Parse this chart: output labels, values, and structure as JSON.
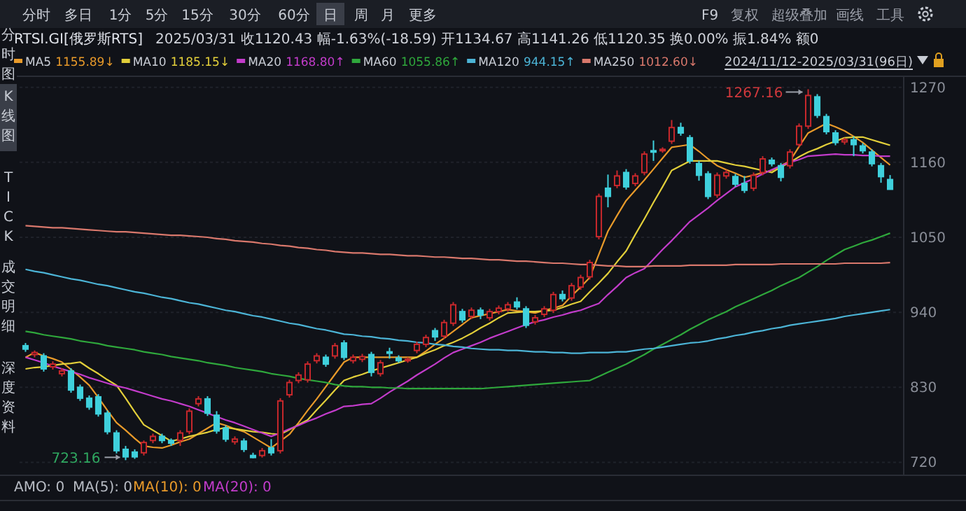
{
  "chart_data": {
    "type": "candlestick",
    "title": "RTSI.GI[俄罗斯RTS]",
    "subtitle": "2025/03/31  收1120.43  幅-1.63%(-18.59)  开1134.67  高1141.26  低1120.35  换0.00%  振1.84%  额0",
    "categories": [
      null,
      null,
      null,
      null,
      null,
      null,
      null,
      null,
      null,
      null,
      null,
      null,
      null,
      null,
      null,
      null,
      null,
      null,
      null,
      null,
      null,
      null,
      null,
      null,
      null,
      null,
      null,
      null,
      null,
      null,
      null,
      null,
      null,
      null,
      null,
      null,
      null,
      null,
      null,
      null,
      null,
      null,
      null,
      null,
      null,
      null,
      null,
      null,
      null,
      null,
      null,
      null,
      null,
      null,
      null,
      null,
      null,
      null,
      null,
      null,
      null,
      null,
      null,
      null,
      null,
      null,
      null,
      null,
      null,
      null,
      null,
      null,
      null,
      null,
      null,
      null,
      null,
      null,
      null,
      null,
      null,
      null,
      null,
      null,
      null,
      null,
      null,
      null,
      null,
      null,
      null,
      null,
      null,
      null,
      null,
      null
    ],
    "ohlc": [
      [
        891,
        895,
        882,
        886
      ],
      [
        878,
        884,
        874,
        881
      ],
      [
        876,
        880,
        853,
        857
      ],
      [
        860,
        868,
        856,
        864
      ],
      [
        850,
        858,
        846,
        854
      ],
      [
        854,
        858,
        822,
        826
      ],
      [
        830,
        834,
        810,
        814
      ],
      [
        814,
        818,
        797,
        801
      ],
      [
        816,
        820,
        787,
        791
      ],
      [
        792,
        796,
        761,
        765
      ],
      [
        763,
        767,
        733,
        737
      ],
      [
        739,
        744,
        723.16,
        728
      ],
      [
        735,
        739,
        725,
        728
      ],
      [
        734,
        752,
        730,
        749
      ],
      [
        752,
        762,
        748,
        758
      ],
      [
        758,
        762,
        748,
        752
      ],
      [
        752,
        755,
        744,
        748
      ],
      [
        752,
        767,
        744,
        763
      ],
      [
        765,
        799,
        761,
        795
      ],
      [
        806,
        817,
        802,
        813
      ],
      [
        813,
        817,
        788,
        792
      ],
      [
        789,
        795,
        762,
        766
      ],
      [
        770,
        774,
        750,
        754
      ],
      [
        750,
        758,
        746,
        754
      ],
      [
        751,
        755,
        735,
        739
      ],
      [
        730,
        734,
        726,
        727
      ],
      [
        730,
        741,
        727,
        737
      ],
      [
        741,
        754,
        730,
        734
      ],
      [
        737,
        814,
        733,
        810
      ],
      [
        819,
        841,
        815,
        837
      ],
      [
        840,
        852,
        836,
        848
      ],
      [
        841,
        868,
        837,
        864
      ],
      [
        869,
        880,
        865,
        876
      ],
      [
        874,
        878,
        860,
        864
      ],
      [
        876,
        895,
        872,
        891
      ],
      [
        895,
        899,
        870,
        874
      ],
      [
        869,
        878,
        865,
        874
      ],
      [
        871,
        879,
        867,
        875
      ],
      [
        878,
        882,
        846,
        852
      ],
      [
        850,
        870,
        846,
        866
      ],
      [
        882,
        888,
        872,
        881
      ],
      [
        873,
        877,
        866,
        869
      ],
      [
        870,
        874,
        866,
        871
      ],
      [
        884,
        897,
        880,
        893
      ],
      [
        893,
        907,
        889,
        903
      ],
      [
        913,
        917,
        898,
        904
      ],
      [
        905,
        929,
        901,
        925
      ],
      [
        924,
        955,
        920,
        951
      ],
      [
        941,
        945,
        925,
        929
      ],
      [
        934,
        947,
        930,
        943
      ],
      [
        943,
        947,
        930,
        936
      ],
      [
        932,
        945,
        928,
        941
      ],
      [
        941,
        950,
        937,
        946
      ],
      [
        945,
        955,
        941,
        951
      ],
      [
        955,
        962,
        944,
        948
      ],
      [
        945,
        949,
        917,
        921
      ],
      [
        926,
        936,
        922,
        932
      ],
      [
        937,
        949,
        933,
        945
      ],
      [
        943,
        970,
        939,
        966
      ],
      [
        966,
        972,
        956,
        960
      ],
      [
        961,
        983,
        957,
        979
      ],
      [
        977,
        995,
        973,
        991
      ],
      [
        992,
        1017,
        988,
        1013
      ],
      [
        1051,
        1114,
        1047,
        1110
      ],
      [
        1122,
        1142,
        1094,
        1110
      ],
      [
        1126,
        1148,
        1122,
        1140
      ],
      [
        1145,
        1150,
        1120,
        1124
      ],
      [
        1129,
        1144,
        1125,
        1140
      ],
      [
        1145,
        1176,
        1141,
        1172
      ],
      [
        1177,
        1192,
        1162,
        1175
      ],
      [
        1178,
        1182,
        1174,
        1179
      ],
      [
        1191,
        1222,
        1187,
        1211
      ],
      [
        1211,
        1218,
        1199,
        1203
      ],
      [
        1196,
        1200,
        1158,
        1162
      ],
      [
        1158,
        1162,
        1133,
        1141
      ],
      [
        1143,
        1147,
        1106,
        1110
      ],
      [
        1112,
        1145,
        1108,
        1141
      ],
      [
        1140,
        1149,
        1136,
        1145
      ],
      [
        1139,
        1143,
        1124,
        1128
      ],
      [
        1129,
        1140,
        1115,
        1119
      ],
      [
        1122,
        1145,
        1118,
        1141
      ],
      [
        1145,
        1169,
        1141,
        1165
      ],
      [
        1163,
        1167,
        1154,
        1158
      ],
      [
        1155,
        1159,
        1132,
        1138
      ],
      [
        1155,
        1179,
        1151,
        1175
      ],
      [
        1186,
        1217,
        1182,
        1213
      ],
      [
        1213,
        1267.16,
        1209,
        1258
      ],
      [
        1256,
        1260,
        1225,
        1229
      ],
      [
        1227,
        1231,
        1201,
        1205
      ],
      [
        1203,
        1207,
        1185,
        1189
      ],
      [
        1190,
        1196,
        1186,
        1193
      ],
      [
        1193,
        1198,
        1169,
        1186
      ],
      [
        1184,
        1188,
        1173,
        1177
      ],
      [
        1175,
        1179,
        1154,
        1158
      ],
      [
        1155,
        1159,
        1130,
        1139
      ],
      [
        1134.67,
        1141.26,
        1120.35,
        1120.43
      ]
    ],
    "colors": [
      "#3fd0dc",
      "#c8282c",
      "#3fd0dc",
      "#c8282c",
      "#c8282c",
      "#3fd0dc",
      "#3fd0dc",
      "#3fd0dc",
      "#3fd0dc",
      "#3fd0dc",
      "#3fd0dc",
      "#3fd0dc",
      "#3fd0dc",
      "#c8282c",
      "#c8282c",
      "#3fd0dc",
      "#3fd0dc",
      "#c8282c",
      "#c8282c",
      "#c8282c",
      "#3fd0dc",
      "#3fd0dc",
      "#3fd0dc",
      "#c8282c",
      "#3fd0dc",
      "#3fd0dc",
      "#c8282c",
      "#3fd0dc",
      "#c8282c",
      "#c8282c",
      "#c8282c",
      "#c8282c",
      "#c8282c",
      "#3fd0dc",
      "#c8282c",
      "#3fd0dc",
      "#c8282c",
      "#c8282c",
      "#3fd0dc",
      "#c8282c",
      "#3fd0dc",
      "#3fd0dc",
      "#c8282c",
      "#c8282c",
      "#c8282c",
      "#3fd0dc",
      "#c8282c",
      "#c8282c",
      "#3fd0dc",
      "#c8282c",
      "#3fd0dc",
      "#c8282c",
      "#c8282c",
      "#c8282c",
      "#3fd0dc",
      "#3fd0dc",
      "#c8282c",
      "#c8282c",
      "#c8282c",
      "#3fd0dc",
      "#c8282c",
      "#c8282c",
      "#c8282c",
      "#c8282c",
      "#3fd0dc",
      "#c8282c",
      "#3fd0dc",
      "#c8282c",
      "#c8282c",
      "#3fd0dc",
      "#c8282c",
      "#c8282c",
      "#3fd0dc",
      "#3fd0dc",
      "#3fd0dc",
      "#3fd0dc",
      "#c8282c",
      "#c8282c",
      "#3fd0dc",
      "#3fd0dc",
      "#c8282c",
      "#c8282c",
      "#3fd0dc",
      "#3fd0dc",
      "#c8282c",
      "#c8282c",
      "#c8282c",
      "#3fd0dc",
      "#3fd0dc",
      "#3fd0dc",
      "#c8282c",
      "#3fd0dc",
      "#3fd0dc",
      "#3fd0dc",
      "#3fd0dc",
      "#3fd0dc"
    ],
    "series": [
      {
        "type": "line",
        "name": "MA5",
        "color": "#e89a2a",
        "values": [
          874,
          881,
          876,
          872,
          867,
          856,
          845,
          833,
          815,
          796,
          778,
          767,
          755,
          744,
          742,
          741,
          745,
          750,
          754,
          762,
          770,
          778,
          774,
          769,
          765,
          757,
          749,
          741,
          751,
          761,
          778,
          796,
          813,
          831,
          849,
          867,
          874,
          874,
          874,
          874,
          874,
          874,
          874,
          874,
          883,
          893,
          902,
          912,
          922,
          932,
          935,
          938,
          941,
          944,
          942,
          941,
          939,
          943,
          946,
          950,
          964,
          977,
          991,
          1025,
          1059,
          1082,
          1104,
          1119,
          1134,
          1150,
          1166,
          1182,
          1184,
          1186,
          1176,
          1165,
          1155,
          1149,
          1144,
          1138,
          1141,
          1145,
          1148,
          1155,
          1162,
          1183,
          1203,
          1210,
          1217,
          1212,
          1206,
          1198,
          1189,
          1178,
          1167,
          1156
        ]
      },
      {
        "type": "line",
        "name": "MA10",
        "color": "#e2cf3a",
        "values": [
          857,
          859,
          860,
          862,
          864,
          865,
          867,
          858,
          850,
          841,
          833,
          814,
          794,
          775,
          767,
          759,
          751,
          754,
          758,
          761,
          764,
          768,
          771,
          769,
          767,
          765,
          764,
          762,
          761,
          768,
          775,
          782,
          797,
          811,
          826,
          840,
          845,
          849,
          854,
          858,
          862,
          866,
          870,
          874,
          880,
          885,
          891,
          896,
          902,
          909,
          917,
          924,
          932,
          939,
          940,
          941,
          941,
          942,
          943,
          947,
          952,
          956,
          970,
          983,
          997,
          1014,
          1030,
          1054,
          1077,
          1101,
          1124,
          1148,
          1155,
          1162,
          1162,
          1162,
          1162,
          1159,
          1156,
          1154,
          1151,
          1148,
          1145,
          1153,
          1160,
          1168,
          1175,
          1180,
          1186,
          1191,
          1196,
          1197,
          1197,
          1193,
          1189,
          1185
        ]
      },
      {
        "type": "line",
        "name": "MA20",
        "color": "#c33ccb",
        "values": [
          874,
          870,
          866,
          861,
          857,
          853,
          849,
          844,
          840,
          836,
          832,
          829,
          825,
          821,
          817,
          813,
          810,
          806,
          802,
          797,
          792,
          787,
          782,
          778,
          773,
          768,
          763,
          758,
          763,
          769,
          774,
          780,
          785,
          791,
          796,
          802,
          803,
          805,
          806,
          814,
          823,
          831,
          839,
          848,
          856,
          864,
          873,
          881,
          886,
          891,
          896,
          902,
          907,
          912,
          917,
          922,
          926,
          929,
          933,
          936,
          940,
          943,
          948,
          953,
          966,
          978,
          991,
          998,
          1004,
          1018,
          1032,
          1045,
          1059,
          1073,
          1083,
          1093,
          1104,
          1114,
          1124,
          1130,
          1136,
          1143,
          1149,
          1155,
          1160,
          1164,
          1169,
          1170,
          1171,
          1172,
          1171,
          1171,
          1170,
          1170,
          1169,
          1169
        ]
      },
      {
        "type": "line",
        "name": "MA60",
        "color": "#2fa83c",
        "values": [
          912,
          910,
          907,
          905,
          903,
          901,
          898,
          896,
          894,
          891,
          889,
          887,
          885,
          882,
          880,
          878,
          875,
          873,
          871,
          869,
          866,
          864,
          862,
          859,
          857,
          855,
          853,
          850,
          848,
          846,
          843,
          841,
          839,
          837,
          834,
          832,
          831,
          831,
          830,
          830,
          829,
          829,
          828,
          828,
          828,
          828,
          828,
          828,
          828,
          828,
          828,
          829,
          830,
          831,
          832,
          833,
          834,
          835,
          836,
          837,
          838,
          839,
          840,
          846,
          852,
          858,
          864,
          871,
          878,
          886,
          893,
          900,
          907,
          915,
          922,
          929,
          935,
          941,
          948,
          954,
          960,
          966,
          972,
          979,
          985,
          991,
          999,
          1007,
          1016,
          1024,
          1032,
          1037,
          1042,
          1046,
          1051,
          1056
        ]
      },
      {
        "type": "line",
        "name": "MA120",
        "color": "#4cb4d6",
        "values": [
          1003,
          1000,
          998,
          995,
          992,
          989,
          987,
          984,
          981,
          979,
          976,
          973,
          970,
          968,
          965,
          962,
          960,
          957,
          954,
          952,
          949,
          946,
          943,
          941,
          938,
          935,
          933,
          930,
          927,
          924,
          922,
          919,
          916,
          914,
          911,
          908,
          907,
          905,
          904,
          902,
          901,
          899,
          898,
          896,
          895,
          893,
          892,
          890,
          889,
          887,
          886,
          885,
          885,
          884,
          884,
          883,
          882,
          882,
          881,
          881,
          880,
          880,
          881,
          881,
          881,
          882,
          882,
          884,
          886,
          887,
          889,
          891,
          893,
          895,
          896,
          898,
          901,
          903,
          906,
          908,
          911,
          913,
          916,
          918,
          921,
          923,
          925,
          927,
          929,
          931,
          934,
          936,
          938,
          940,
          942,
          944
        ]
      },
      {
        "type": "line",
        "name": "MA250",
        "color": "#d9786c",
        "values": [
          1067,
          1066,
          1065,
          1064,
          1064,
          1063,
          1062,
          1061,
          1060,
          1059,
          1058,
          1058,
          1057,
          1056,
          1055,
          1054,
          1053,
          1053,
          1052,
          1051,
          1050,
          1048,
          1047,
          1045,
          1044,
          1043,
          1041,
          1040,
          1038,
          1037,
          1035,
          1034,
          1032,
          1031,
          1029,
          1028,
          1027,
          1027,
          1026,
          1025,
          1025,
          1024,
          1023,
          1023,
          1022,
          1021,
          1021,
          1020,
          1019,
          1019,
          1018,
          1017,
          1017,
          1016,
          1015,
          1015,
          1014,
          1013,
          1012,
          1012,
          1011,
          1010,
          1010,
          1009,
          1008,
          1008,
          1007,
          1007,
          1007,
          1008,
          1008,
          1008,
          1008,
          1009,
          1009,
          1009,
          1009,
          1009,
          1010,
          1010,
          1010,
          1010,
          1010,
          1011,
          1011,
          1011,
          1011,
          1011,
          1011,
          1011,
          1012,
          1012,
          1012,
          1012,
          1012,
          1013
        ]
      }
    ],
    "ylim": [
      704,
      1281
    ],
    "yticks": [
      720,
      830,
      940,
      1050,
      1160,
      1270
    ],
    "grid": "y",
    "legend": "top left",
    "tick_labels": "y",
    "annotations": [
      "分时",
      "多日",
      "1分",
      "5分",
      "15分",
      "30分",
      "60分",
      "日",
      "周",
      "月",
      "更多",
      "F9",
      "复权",
      "超级叠加",
      "画线",
      "工具",
      "分时图",
      "K线图",
      "TICK",
      "成交明细",
      "深度资料",
      "2024/11/12-2025/03/31(96日)",
      "AMO: 0",
      "MA(5): 0",
      "MA(10): 0",
      "MA(20): 0",
      "1155.89↓",
      "1185.15↓",
      "1168.80↑",
      "1055.86↑",
      "944.15↑",
      "1012.60↓",
      "1267.16",
      "723.16"
    ]
  }
}
